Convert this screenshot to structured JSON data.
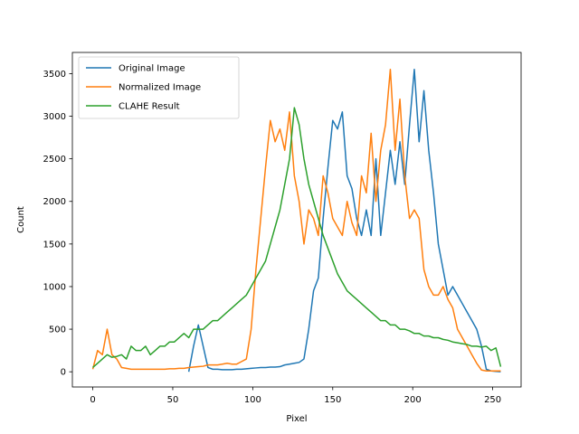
{
  "chart_data": {
    "type": "line",
    "xlabel": "Pixel",
    "ylabel": "Count",
    "x": [
      0,
      3,
      6,
      9,
      12,
      15,
      18,
      21,
      24,
      27,
      30,
      33,
      36,
      39,
      42,
      45,
      48,
      51,
      54,
      57,
      60,
      63,
      66,
      69,
      72,
      75,
      78,
      81,
      84,
      87,
      90,
      93,
      96,
      99,
      102,
      105,
      108,
      111,
      114,
      117,
      120,
      123,
      126,
      129,
      132,
      135,
      138,
      141,
      144,
      147,
      150,
      153,
      156,
      159,
      162,
      165,
      168,
      171,
      174,
      177,
      180,
      183,
      186,
      189,
      192,
      195,
      198,
      201,
      204,
      207,
      210,
      213,
      216,
      219,
      222,
      225,
      228,
      231,
      234,
      237,
      240,
      243,
      246,
      249,
      252,
      255
    ],
    "series": [
      {
        "name": "Original Image",
        "color": "#1f77b4",
        "values": [
          null,
          null,
          null,
          null,
          null,
          null,
          null,
          null,
          null,
          null,
          null,
          null,
          null,
          null,
          null,
          null,
          null,
          null,
          null,
          null,
          0,
          300,
          550,
          300,
          50,
          30,
          30,
          25,
          25,
          25,
          30,
          30,
          35,
          40,
          45,
          50,
          50,
          55,
          55,
          60,
          80,
          90,
          100,
          110,
          150,
          500,
          950,
          1100,
          1800,
          2400,
          2950,
          2850,
          3050,
          2300,
          2150,
          1800,
          1600,
          1900,
          1600,
          2500,
          1600,
          2100,
          2600,
          2200,
          2700,
          2200,
          2900,
          3550,
          2700,
          3300,
          2600,
          2100,
          1500,
          1200,
          900,
          1000,
          900,
          800,
          700,
          600,
          500,
          300,
          30,
          10,
          5,
          0
        ]
      },
      {
        "name": "Normalized Image",
        "color": "#ff7f0e",
        "values": [
          30,
          250,
          200,
          500,
          200,
          150,
          50,
          40,
          30,
          30,
          30,
          30,
          30,
          30,
          30,
          30,
          35,
          35,
          40,
          40,
          50,
          55,
          60,
          65,
          80,
          80,
          80,
          90,
          100,
          90,
          90,
          120,
          150,
          500,
          1200,
          1800,
          2400,
          2950,
          2700,
          2850,
          2600,
          3050,
          2300,
          2000,
          1500,
          1900,
          1800,
          1600,
          2300,
          2100,
          1800,
          1700,
          1600,
          2000,
          1750,
          1600,
          2300,
          2100,
          2800,
          2000,
          2600,
          2900,
          3550,
          2600,
          3200,
          2300,
          1800,
          1900,
          1800,
          1200,
          1000,
          900,
          900,
          1000,
          850,
          750,
          500,
          400,
          300,
          200,
          100,
          20,
          10,
          10,
          10,
          10
        ]
      },
      {
        "name": "CLAHE Result",
        "color": "#2ca02c",
        "values": [
          50,
          100,
          150,
          200,
          170,
          180,
          200,
          150,
          300,
          250,
          250,
          300,
          200,
          250,
          300,
          300,
          350,
          350,
          400,
          450,
          400,
          500,
          500,
          500,
          550,
          600,
          600,
          650,
          700,
          750,
          800,
          850,
          900,
          1000,
          1100,
          1200,
          1300,
          1500,
          1700,
          1900,
          2200,
          2500,
          3100,
          2900,
          2500,
          2200,
          2000,
          1800,
          1600,
          1450,
          1300,
          1150,
          1050,
          950,
          900,
          850,
          800,
          750,
          700,
          650,
          600,
          600,
          550,
          550,
          500,
          500,
          480,
          450,
          450,
          420,
          420,
          400,
          400,
          380,
          370,
          350,
          340,
          330,
          320,
          300,
          300,
          290,
          300,
          250,
          280,
          60
        ]
      }
    ],
    "xlim": [
      -12.75,
      267.75
    ],
    "xticks": [
      0,
      50,
      100,
      150,
      200,
      250
    ],
    "ylim": [
      -178.5,
      3748.5
    ],
    "yticks": [
      0,
      500,
      1000,
      1500,
      2000,
      2500,
      3000,
      3500
    ],
    "legend": "upper left"
  }
}
